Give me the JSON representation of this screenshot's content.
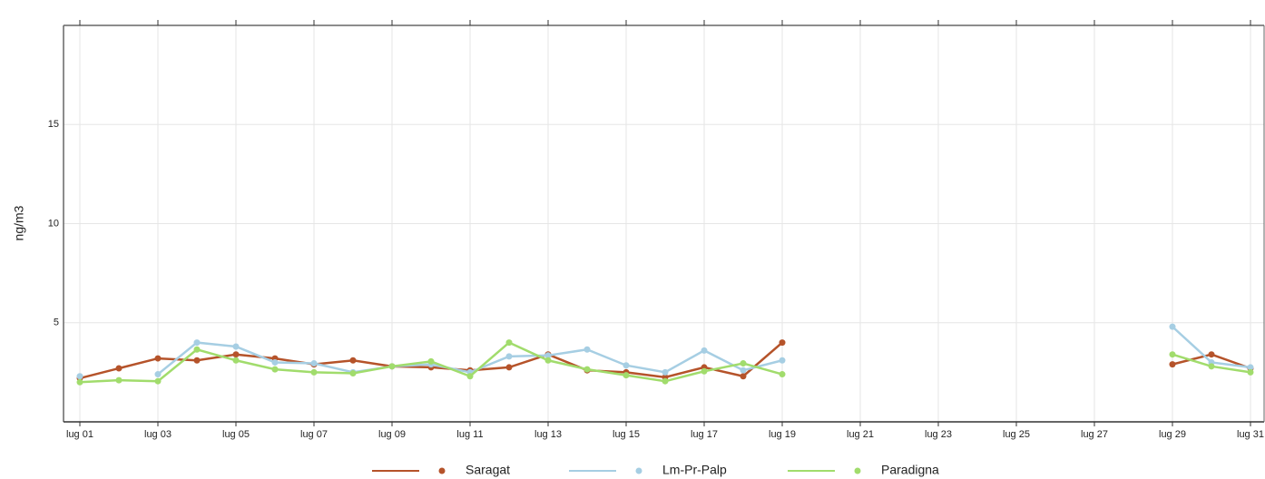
{
  "chart_data": {
    "type": "line",
    "y_label": "ng/m3",
    "categories": [
      "lug 01",
      null,
      "lug 03",
      null,
      "lug 05",
      null,
      "lug 07",
      null,
      "lug 09",
      null,
      "lug 11",
      null,
      "lug 13",
      null,
      "lug 15",
      null,
      "lug 17",
      null,
      "lug 19",
      null,
      "lug 21",
      null,
      "lug 23",
      null,
      "lug 25",
      null,
      "lug 27",
      null,
      "lug 29",
      null,
      "lug 31"
    ],
    "series": [
      {
        "name": "Saragat",
        "color": "#b5532a",
        "values": [
          2.2,
          2.7,
          3.2,
          3.1,
          3.4,
          3.2,
          2.9,
          3.1,
          2.8,
          2.75,
          2.6,
          2.75,
          3.4,
          2.6,
          2.5,
          2.25,
          2.75,
          2.3,
          4.0,
          null,
          null,
          null,
          null,
          null,
          null,
          null,
          null,
          null,
          2.9,
          3.4,
          2.7
        ]
      },
      {
        "name": "Lm-Pr-Palp",
        "color": "#a6cee3",
        "values": [
          2.3,
          null,
          2.4,
          4.0,
          3.8,
          3.0,
          2.95,
          2.5,
          2.8,
          2.9,
          2.5,
          3.3,
          3.35,
          3.65,
          2.85,
          2.5,
          3.6,
          2.6,
          3.1,
          null,
          null,
          null,
          null,
          null,
          null,
          null,
          null,
          null,
          4.8,
          3.0,
          2.75
        ]
      },
      {
        "name": "Paradigna",
        "color": "#a1dc6c",
        "values": [
          2.0,
          2.1,
          2.05,
          3.65,
          3.1,
          2.65,
          2.5,
          2.45,
          2.8,
          3.05,
          2.3,
          4.0,
          3.1,
          2.65,
          2.35,
          2.05,
          2.55,
          2.95,
          2.4,
          null,
          null,
          null,
          null,
          null,
          null,
          null,
          null,
          null,
          3.4,
          2.8,
          2.5
        ]
      }
    ],
    "ylim": [
      0,
      20
    ],
    "yticks": [
      5,
      10,
      15
    ],
    "grid": true
  }
}
